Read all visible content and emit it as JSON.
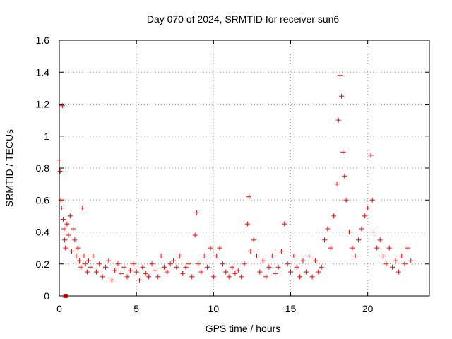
{
  "chart_data": {
    "type": "scatter",
    "title": "Day 070 of 2024, SRMTID for receiver sun6",
    "xlabel": "GPS time / hours",
    "ylabel": "SRMTID / TECUs",
    "xlim": [
      0,
      24
    ],
    "ylim": [
      0,
      1.6
    ],
    "xticks": [
      0,
      5,
      10,
      15,
      20
    ],
    "xtick_labels": [
      "0",
      "5",
      "10",
      "15",
      "20"
    ],
    "yticks": [
      0,
      0.2,
      0.4,
      0.6,
      0.8,
      1,
      1.2,
      1.4,
      1.6
    ],
    "ytick_labels": [
      "0",
      "0.2",
      "0.4",
      "0.6",
      "0.8",
      "1",
      "1.2",
      "1.4",
      "1.6"
    ],
    "grid": true,
    "marker": "+",
    "series_color": "#ff0000",
    "series": [
      {
        "name": "sun6",
        "x": [
          0.0,
          0.05,
          0.1,
          0.15,
          0.2,
          0.25,
          0.3,
          0.35,
          0.4,
          0.5,
          0.6,
          0.7,
          0.8,
          0.9,
          1.0,
          1.1,
          1.2,
          1.3,
          1.4,
          1.5,
          1.6,
          1.7,
          1.8,
          1.9,
          2.0,
          2.2,
          2.4,
          2.6,
          2.8,
          3.0,
          3.2,
          3.4,
          3.6,
          3.8,
          4.0,
          4.2,
          4.4,
          4.6,
          4.8,
          5.0,
          5.2,
          5.4,
          5.6,
          5.8,
          6.0,
          6.2,
          6.4,
          6.6,
          6.8,
          7.0,
          7.2,
          7.4,
          7.6,
          7.8,
          8.0,
          8.2,
          8.4,
          8.6,
          8.8,
          8.9,
          9.0,
          9.2,
          9.4,
          9.6,
          9.8,
          10.0,
          10.2,
          10.4,
          10.6,
          10.8,
          11.0,
          11.2,
          11.4,
          11.6,
          11.8,
          12.0,
          12.2,
          12.3,
          12.4,
          12.6,
          12.8,
          13.0,
          13.2,
          13.4,
          13.6,
          13.8,
          14.0,
          14.2,
          14.4,
          14.6,
          14.8,
          15.0,
          15.2,
          15.4,
          15.6,
          15.8,
          16.0,
          16.2,
          16.4,
          16.6,
          16.8,
          17.0,
          17.2,
          17.4,
          17.6,
          17.8,
          18.0,
          18.1,
          18.2,
          18.3,
          18.4,
          18.5,
          18.6,
          18.8,
          19.0,
          19.2,
          19.4,
          19.6,
          19.8,
          20.0,
          20.2,
          20.3,
          20.4,
          20.6,
          20.8,
          21.0,
          21.2,
          21.4,
          21.6,
          21.8,
          22.0,
          22.2,
          22.4,
          22.6,
          22.8
        ],
        "y": [
          0.85,
          0.78,
          0.6,
          0.55,
          1.19,
          0.48,
          0.42,
          0.35,
          0.3,
          0.45,
          0.38,
          0.5,
          0.28,
          0.42,
          0.35,
          0.25,
          0.3,
          0.22,
          0.18,
          0.55,
          0.25,
          0.2,
          0.15,
          0.22,
          0.18,
          0.25,
          0.15,
          0.2,
          0.12,
          0.18,
          0.22,
          0.1,
          0.16,
          0.2,
          0.14,
          0.18,
          0.12,
          0.16,
          0.2,
          0.15,
          0.1,
          0.18,
          0.14,
          0.12,
          0.2,
          0.16,
          0.12,
          0.25,
          0.18,
          0.15,
          0.2,
          0.22,
          0.18,
          0.25,
          0.14,
          0.18,
          0.2,
          0.12,
          0.38,
          0.52,
          0.2,
          0.15,
          0.25,
          0.18,
          0.3,
          0.12,
          0.25,
          0.3,
          0.2,
          0.15,
          0.12,
          0.18,
          0.14,
          0.16,
          0.12,
          0.2,
          0.45,
          0.62,
          0.28,
          0.35,
          0.25,
          0.15,
          0.22,
          0.12,
          0.18,
          0.25,
          0.14,
          0.18,
          0.28,
          0.45,
          0.2,
          0.15,
          0.25,
          0.18,
          0.12,
          0.22,
          0.15,
          0.25,
          0.12,
          0.22,
          0.15,
          0.18,
          0.35,
          0.42,
          0.3,
          0.5,
          0.7,
          1.1,
          1.38,
          1.25,
          0.9,
          0.75,
          0.6,
          0.4,
          0.3,
          0.25,
          0.35,
          0.42,
          0.5,
          0.55,
          0.88,
          0.6,
          0.4,
          0.3,
          0.35,
          0.25,
          0.2,
          0.3,
          0.18,
          0.22,
          0.15,
          0.25,
          0.2,
          0.3,
          0.22
        ]
      }
    ],
    "outlier": {
      "x": 0.4,
      "y": 0
    }
  }
}
